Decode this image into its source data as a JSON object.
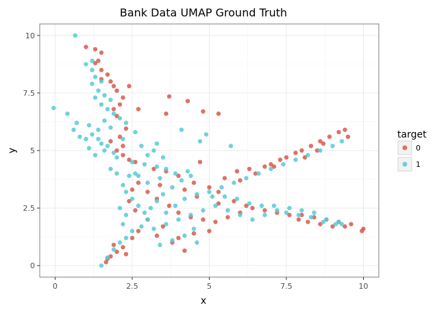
{
  "chart_data": {
    "type": "scatter",
    "title": "Bank Data UMAP Ground Truth",
    "xlabel": "x",
    "ylabel": "y",
    "xlim": [
      -0.5,
      10.5
    ],
    "ylim": [
      -0.5,
      10.5
    ],
    "xticks": [
      0,
      2.5,
      5,
      7.5,
      10
    ],
    "xtick_labels": [
      "0",
      "2.5",
      "5",
      "7.5",
      "10"
    ],
    "yticks": [
      0,
      2.5,
      5,
      7.5,
      10
    ],
    "ytick_labels": [
      "0",
      "2.5",
      "5",
      "7.5",
      "10"
    ],
    "grid": true,
    "legend": {
      "title": "target",
      "placement": "right"
    },
    "series": [
      {
        "name": "0",
        "color": "#d9584c",
        "points": [
          [
            1.0,
            9.5
          ],
          [
            1.3,
            9.4
          ],
          [
            1.5,
            9.25
          ],
          [
            1.4,
            8.9
          ],
          [
            1.3,
            8.8
          ],
          [
            1.5,
            8.5
          ],
          [
            1.7,
            8.3
          ],
          [
            1.5,
            8.1
          ],
          [
            1.8,
            8.0
          ],
          [
            1.9,
            7.8
          ],
          [
            2.0,
            7.6
          ],
          [
            2.4,
            7.8
          ],
          [
            2.2,
            7.3
          ],
          [
            2.1,
            7.0
          ],
          [
            1.9,
            6.8
          ],
          [
            2.0,
            6.5
          ],
          [
            2.7,
            6.8
          ],
          [
            3.7,
            7.35
          ],
          [
            4.3,
            7.15
          ],
          [
            4.8,
            6.7
          ],
          [
            5.3,
            6.6
          ],
          [
            3.6,
            6.6
          ],
          [
            2.3,
            5.95
          ],
          [
            2.1,
            5.6
          ],
          [
            1.8,
            5.4
          ],
          [
            2.2,
            5.2
          ],
          [
            2.0,
            5.0
          ],
          [
            2.2,
            4.8
          ],
          [
            2.4,
            4.6
          ],
          [
            2.6,
            4.5
          ],
          [
            3.2,
            4.2
          ],
          [
            3.6,
            4.1
          ],
          [
            4.0,
            3.9
          ],
          [
            4.5,
            3.6
          ],
          [
            5.0,
            3.4
          ],
          [
            5.3,
            3.2
          ],
          [
            4.7,
            4.5
          ],
          [
            5.5,
            3.8
          ],
          [
            6.0,
            3.7
          ],
          [
            6.5,
            4.0
          ],
          [
            7.0,
            4.4
          ],
          [
            7.5,
            4.7
          ],
          [
            7.8,
            4.9
          ],
          [
            8.0,
            5.0
          ],
          [
            8.3,
            5.2
          ],
          [
            8.6,
            5.4
          ],
          [
            8.9,
            5.6
          ],
          [
            9.2,
            5.8
          ],
          [
            9.4,
            5.9
          ],
          [
            9.5,
            5.6
          ],
          [
            7.3,
            4.6
          ],
          [
            7.1,
            4.3
          ],
          [
            6.8,
            4.3
          ],
          [
            3.0,
            3.2
          ],
          [
            3.3,
            2.9
          ],
          [
            3.7,
            2.6
          ],
          [
            4.0,
            2.3
          ],
          [
            4.4,
            2.1
          ],
          [
            4.8,
            2.0
          ],
          [
            5.2,
            1.9
          ],
          [
            5.6,
            2.1
          ],
          [
            6.0,
            2.3
          ],
          [
            6.4,
            2.5
          ],
          [
            6.8,
            2.4
          ],
          [
            7.2,
            2.3
          ],
          [
            7.6,
            2.2
          ],
          [
            8.0,
            2.2
          ],
          [
            8.4,
            2.1
          ],
          [
            8.8,
            2.0
          ],
          [
            9.2,
            1.9
          ],
          [
            9.4,
            1.7
          ],
          [
            9.6,
            1.8
          ],
          [
            9.95,
            1.5
          ],
          [
            10.0,
            1.6
          ],
          [
            5.0,
            1.5
          ],
          [
            4.5,
            1.4
          ],
          [
            4.0,
            1.2
          ],
          [
            3.8,
            1.0
          ],
          [
            4.2,
            0.65
          ],
          [
            3.3,
            1.3
          ],
          [
            2.7,
            1.5
          ],
          [
            2.5,
            1.2
          ],
          [
            2.2,
            0.8
          ],
          [
            2.0,
            0.6
          ],
          [
            1.8,
            0.4
          ],
          [
            1.7,
            0.3
          ],
          [
            1.65,
            0.15
          ],
          [
            1.9,
            0.9
          ],
          [
            2.3,
            0.5
          ],
          [
            3.5,
            1.7
          ],
          [
            3.0,
            2.0
          ],
          [
            2.6,
            2.4
          ],
          [
            2.4,
            2.8
          ],
          [
            2.5,
            3.3
          ],
          [
            2.7,
            3.6
          ],
          [
            3.4,
            3.5
          ],
          [
            4.2,
            3.3
          ],
          [
            4.6,
            3.0
          ],
          [
            5.8,
            2.8
          ],
          [
            6.2,
            2.6
          ],
          [
            7.9,
            2.0
          ],
          [
            8.2,
            1.9
          ],
          [
            8.6,
            1.8
          ],
          [
            9.0,
            1.7
          ],
          [
            5.3,
            2.7
          ],
          [
            5.9,
            4.1
          ],
          [
            6.3,
            4.2
          ],
          [
            8.1,
            4.7
          ],
          [
            8.5,
            5.0
          ],
          [
            8.7,
            5.3
          ]
        ]
      },
      {
        "name": "1",
        "color": "#56cad3",
        "points": [
          [
            0.65,
            10.0
          ],
          [
            1.0,
            8.75
          ],
          [
            1.2,
            8.5
          ],
          [
            1.3,
            8.2
          ],
          [
            1.2,
            7.9
          ],
          [
            1.4,
            7.6
          ],
          [
            1.6,
            7.4
          ],
          [
            1.8,
            7.2
          ],
          [
            1.5,
            7.0
          ],
          [
            1.7,
            6.8
          ],
          [
            1.9,
            6.6
          ],
          [
            2.1,
            6.4
          ],
          [
            2.3,
            6.2
          ],
          [
            1.8,
            6.0
          ],
          [
            1.4,
            5.9
          ],
          [
            1.2,
            5.7
          ],
          [
            1.0,
            5.5
          ],
          [
            0.8,
            5.6
          ],
          [
            0.6,
            5.9
          ],
          [
            0.4,
            6.6
          ],
          [
            -0.05,
            6.85
          ],
          [
            1.5,
            5.3
          ],
          [
            1.7,
            5.2
          ],
          [
            1.6,
            5.0
          ],
          [
            1.9,
            4.9
          ],
          [
            1.1,
            5.1
          ],
          [
            1.3,
            4.8
          ],
          [
            2.0,
            4.7
          ],
          [
            2.5,
            4.5
          ],
          [
            2.8,
            5.2
          ],
          [
            3.2,
            5.0
          ],
          [
            3.5,
            4.7
          ],
          [
            2.9,
            4.4
          ],
          [
            3.3,
            4.3
          ],
          [
            3.6,
            4.2
          ],
          [
            2.6,
            4.0
          ],
          [
            2.4,
            3.9
          ],
          [
            2.2,
            3.5
          ],
          [
            2.3,
            3.2
          ],
          [
            2.5,
            2.9
          ],
          [
            2.7,
            2.6
          ],
          [
            2.9,
            2.3
          ],
          [
            3.1,
            2.5
          ],
          [
            3.3,
            2.8
          ],
          [
            3.5,
            3.1
          ],
          [
            3.8,
            3.4
          ],
          [
            4.1,
            3.7
          ],
          [
            4.4,
            3.9
          ],
          [
            4.7,
            5.4
          ],
          [
            4.9,
            5.7
          ],
          [
            4.1,
            5.9
          ],
          [
            5.7,
            5.2
          ],
          [
            3.0,
            2.0
          ],
          [
            2.8,
            1.7
          ],
          [
            2.5,
            1.5
          ],
          [
            2.3,
            1.2
          ],
          [
            2.1,
            1.0
          ],
          [
            1.9,
            0.7
          ],
          [
            1.7,
            0.35
          ],
          [
            1.5,
            0.0
          ],
          [
            3.2,
            1.6
          ],
          [
            3.6,
            1.8
          ],
          [
            4.0,
            2.0
          ],
          [
            4.4,
            2.2
          ],
          [
            4.8,
            2.4
          ],
          [
            5.2,
            2.6
          ],
          [
            5.6,
            2.4
          ],
          [
            6.0,
            2.2
          ],
          [
            6.4,
            2.0
          ],
          [
            6.8,
            2.2
          ],
          [
            7.2,
            2.4
          ],
          [
            7.6,
            2.5
          ],
          [
            8.0,
            2.4
          ],
          [
            8.4,
            2.3
          ],
          [
            8.8,
            2.0
          ],
          [
            9.2,
            1.9
          ],
          [
            5.0,
            3.2
          ],
          [
            5.4,
            3.4
          ],
          [
            5.8,
            3.6
          ],
          [
            6.2,
            3.8
          ],
          [
            6.6,
            4.0
          ],
          [
            7.0,
            4.2
          ],
          [
            7.4,
            4.4
          ],
          [
            7.8,
            4.6
          ],
          [
            8.2,
            4.8
          ],
          [
            8.6,
            5.0
          ],
          [
            9.0,
            5.2
          ],
          [
            9.3,
            5.4
          ],
          [
            4.5,
            1.6
          ],
          [
            4.2,
            1.3
          ],
          [
            3.8,
            1.1
          ],
          [
            4.6,
            1.0
          ],
          [
            3.4,
            0.9
          ],
          [
            2.7,
            3.9
          ],
          [
            3.0,
            3.6
          ],
          [
            3.4,
            3.8
          ],
          [
            3.9,
            4.0
          ],
          [
            4.3,
            4.1
          ],
          [
            3.6,
            2.3
          ],
          [
            3.9,
            2.6
          ],
          [
            4.2,
            2.9
          ],
          [
            4.6,
            3.1
          ],
          [
            5.1,
            3.0
          ],
          [
            5.5,
            3.0
          ],
          [
            5.9,
            2.9
          ],
          [
            6.3,
            2.7
          ],
          [
            6.7,
            2.6
          ],
          [
            7.1,
            2.6
          ],
          [
            7.5,
            2.3
          ],
          [
            7.9,
            2.2
          ],
          [
            8.3,
            2.1
          ],
          [
            8.7,
            1.9
          ],
          [
            9.1,
            1.8
          ],
          [
            9.3,
            1.8
          ],
          [
            2.1,
            2.5
          ],
          [
            2.3,
            2.2
          ],
          [
            2.2,
            1.8
          ],
          [
            1.8,
            4.2
          ],
          [
            2.0,
            4.0
          ],
          [
            1.2,
            8.9
          ],
          [
            1.5,
            8.0
          ],
          [
            1.3,
            7.3
          ],
          [
            1.6,
            6.3
          ],
          [
            1.1,
            6.1
          ],
          [
            0.7,
            6.2
          ],
          [
            1.4,
            5.5
          ],
          [
            2.2,
            5.5
          ],
          [
            2.6,
            5.8
          ],
          [
            3.3,
            5.3
          ],
          [
            3.0,
            4.8
          ]
        ]
      }
    ]
  }
}
